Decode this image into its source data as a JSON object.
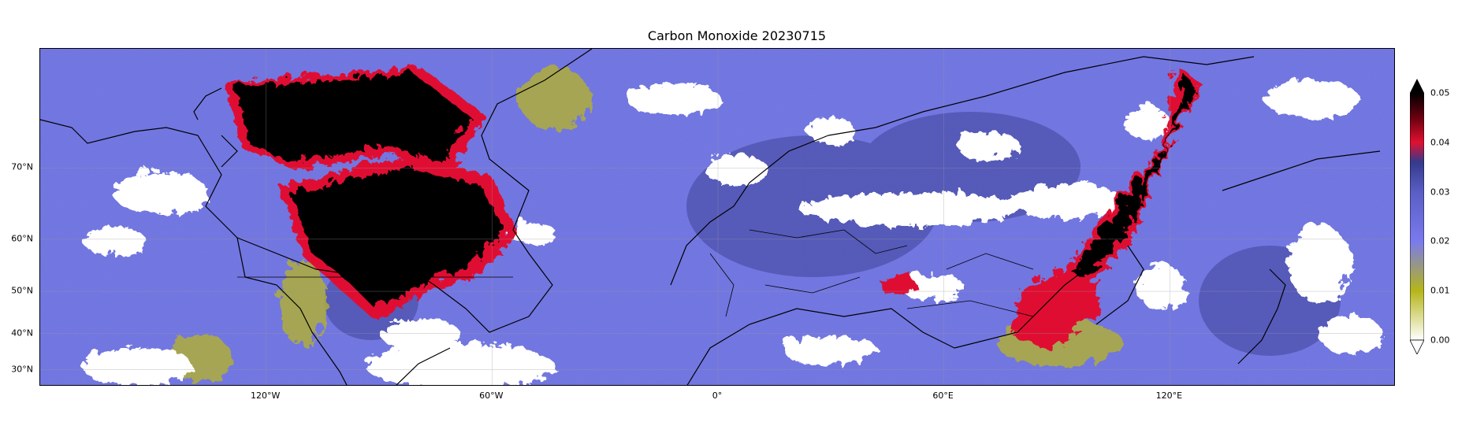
{
  "title": "Carbon Monoxide 20230715",
  "lat_ticks": [
    {
      "label": "70°N",
      "lat": 70
    },
    {
      "label": "60°N",
      "lat": 60
    },
    {
      "label": "50°N",
      "lat": 50
    },
    {
      "label": "40°N",
      "lat": 40
    },
    {
      "label": "30°N",
      "lat": 30
    }
  ],
  "lon_ticks": [
    {
      "label": "120°W",
      "lon": -120
    },
    {
      "label": "60°W",
      "lon": -60
    },
    {
      "label": "0°",
      "lon": 0
    },
    {
      "label": "60°E",
      "lon": 60
    },
    {
      "label": "120°E",
      "lon": 120
    }
  ],
  "map_extent": {
    "lon_min": -180,
    "lon_max": 180,
    "lat_min": 25,
    "lat_max": 80
  },
  "colorbar": {
    "min": 0.0,
    "max": 0.05,
    "extend": "both",
    "ticks": [
      "0.00",
      "0.01",
      "0.02",
      "0.03",
      "0.04",
      "0.05"
    ],
    "colors": [
      "#ffffff",
      "#b5b51a",
      "#7a7aee",
      "#343a8c",
      "#e01030",
      "#000000"
    ]
  },
  "legend_placement": "right",
  "grid": true
}
